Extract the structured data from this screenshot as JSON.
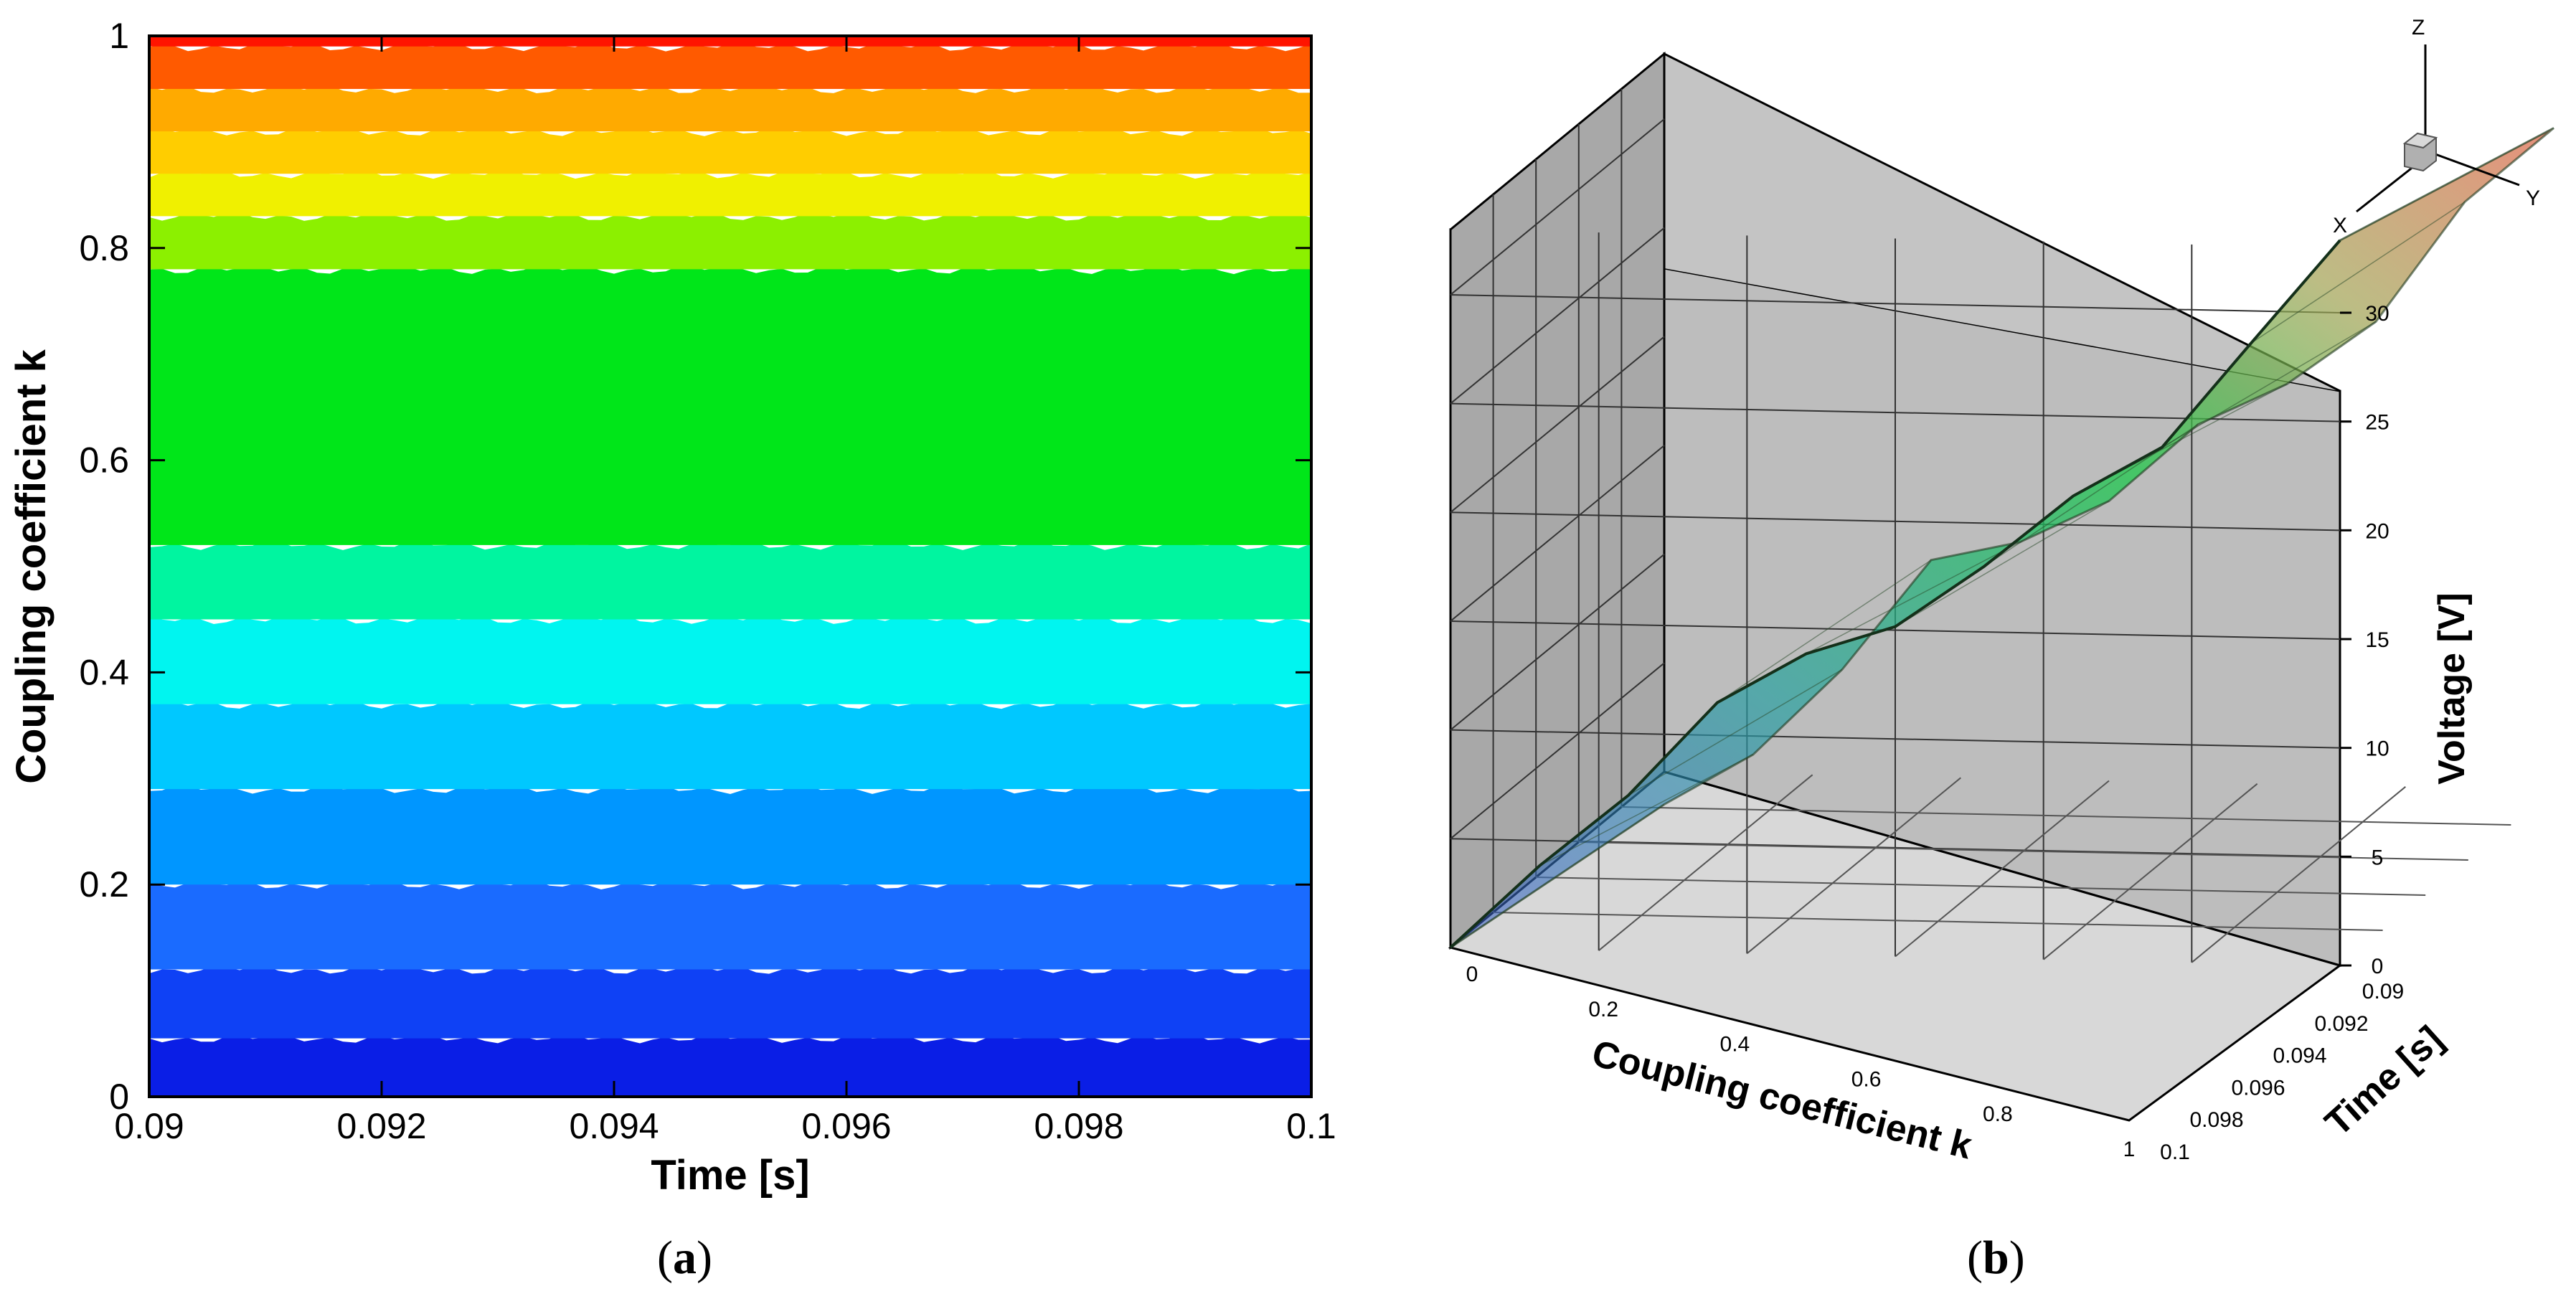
{
  "chart_data": [
    {
      "panel": "a",
      "type": "heatmap",
      "xlabel": "Time [s]",
      "ylabel": "Coupling coefficient k",
      "xlim": [
        0.09,
        0.1
      ],
      "ylim": [
        0,
        1
      ],
      "x_ticks": [
        "0.09",
        "0.092",
        "0.094",
        "0.096",
        "0.098",
        "0.1"
      ],
      "y_ticks": [
        "0",
        "0.2",
        "0.4",
        "0.6",
        "0.8",
        "1"
      ],
      "bands": [
        {
          "k_from": 0.0,
          "k_to": 0.055,
          "color": "#0a1ee6"
        },
        {
          "k_from": 0.055,
          "k_to": 0.12,
          "color": "#0f41f5"
        },
        {
          "k_from": 0.12,
          "k_to": 0.2,
          "color": "#1a6bff"
        },
        {
          "k_from": 0.2,
          "k_to": 0.29,
          "color": "#0096ff"
        },
        {
          "k_from": 0.29,
          "k_to": 0.37,
          "color": "#00c8ff"
        },
        {
          "k_from": 0.37,
          "k_to": 0.45,
          "color": "#00f5f0"
        },
        {
          "k_from": 0.45,
          "k_to": 0.52,
          "color": "#00f5a0"
        },
        {
          "k_from": 0.52,
          "k_to": 0.78,
          "color": "#00e619"
        },
        {
          "k_from": 0.78,
          "k_to": 0.83,
          "color": "#8cf000"
        },
        {
          "k_from": 0.83,
          "k_to": 0.87,
          "color": "#f0f000"
        },
        {
          "k_from": 0.87,
          "k_to": 0.91,
          "color": "#ffcd00"
        },
        {
          "k_from": 0.91,
          "k_to": 0.95,
          "color": "#ffaa00"
        },
        {
          "k_from": 0.95,
          "k_to": 0.99,
          "color": "#ff5a00"
        },
        {
          "k_from": 0.99,
          "k_to": 1.0,
          "color": "#ff1400"
        }
      ]
    },
    {
      "panel": "b",
      "type": "surface",
      "xlabel": "Coupling coefficient k",
      "ylabel": "Time [s]",
      "zlabel": "Voltage [V]",
      "x_ticks": [
        "0",
        "0.2",
        "0.4",
        "0.6",
        "0.8",
        "1"
      ],
      "y_ticks": [
        "0.09",
        "0.092",
        "0.094",
        "0.096",
        "0.098",
        "0.1"
      ],
      "z_ticks": [
        "0",
        "5",
        "10",
        "15",
        "20",
        "25",
        "30"
      ],
      "zlim": [
        0,
        33
      ],
      "k": [
        0,
        0.1,
        0.2,
        0.3,
        0.4,
        0.5,
        0.6,
        0.7,
        0.8,
        0.9,
        1.0
      ],
      "voltage": [
        0,
        3.5,
        7.5,
        11.5,
        13.5,
        15.5,
        18,
        21,
        24,
        28.5,
        33
      ],
      "triad": {
        "x": "X",
        "y": "Y",
        "z": "Z"
      }
    }
  ],
  "panel_labels": {
    "a_open": "(",
    "a_letter": "a",
    "a_close": ")",
    "b_open": "(",
    "b_letter": "b",
    "b_close": ")"
  }
}
